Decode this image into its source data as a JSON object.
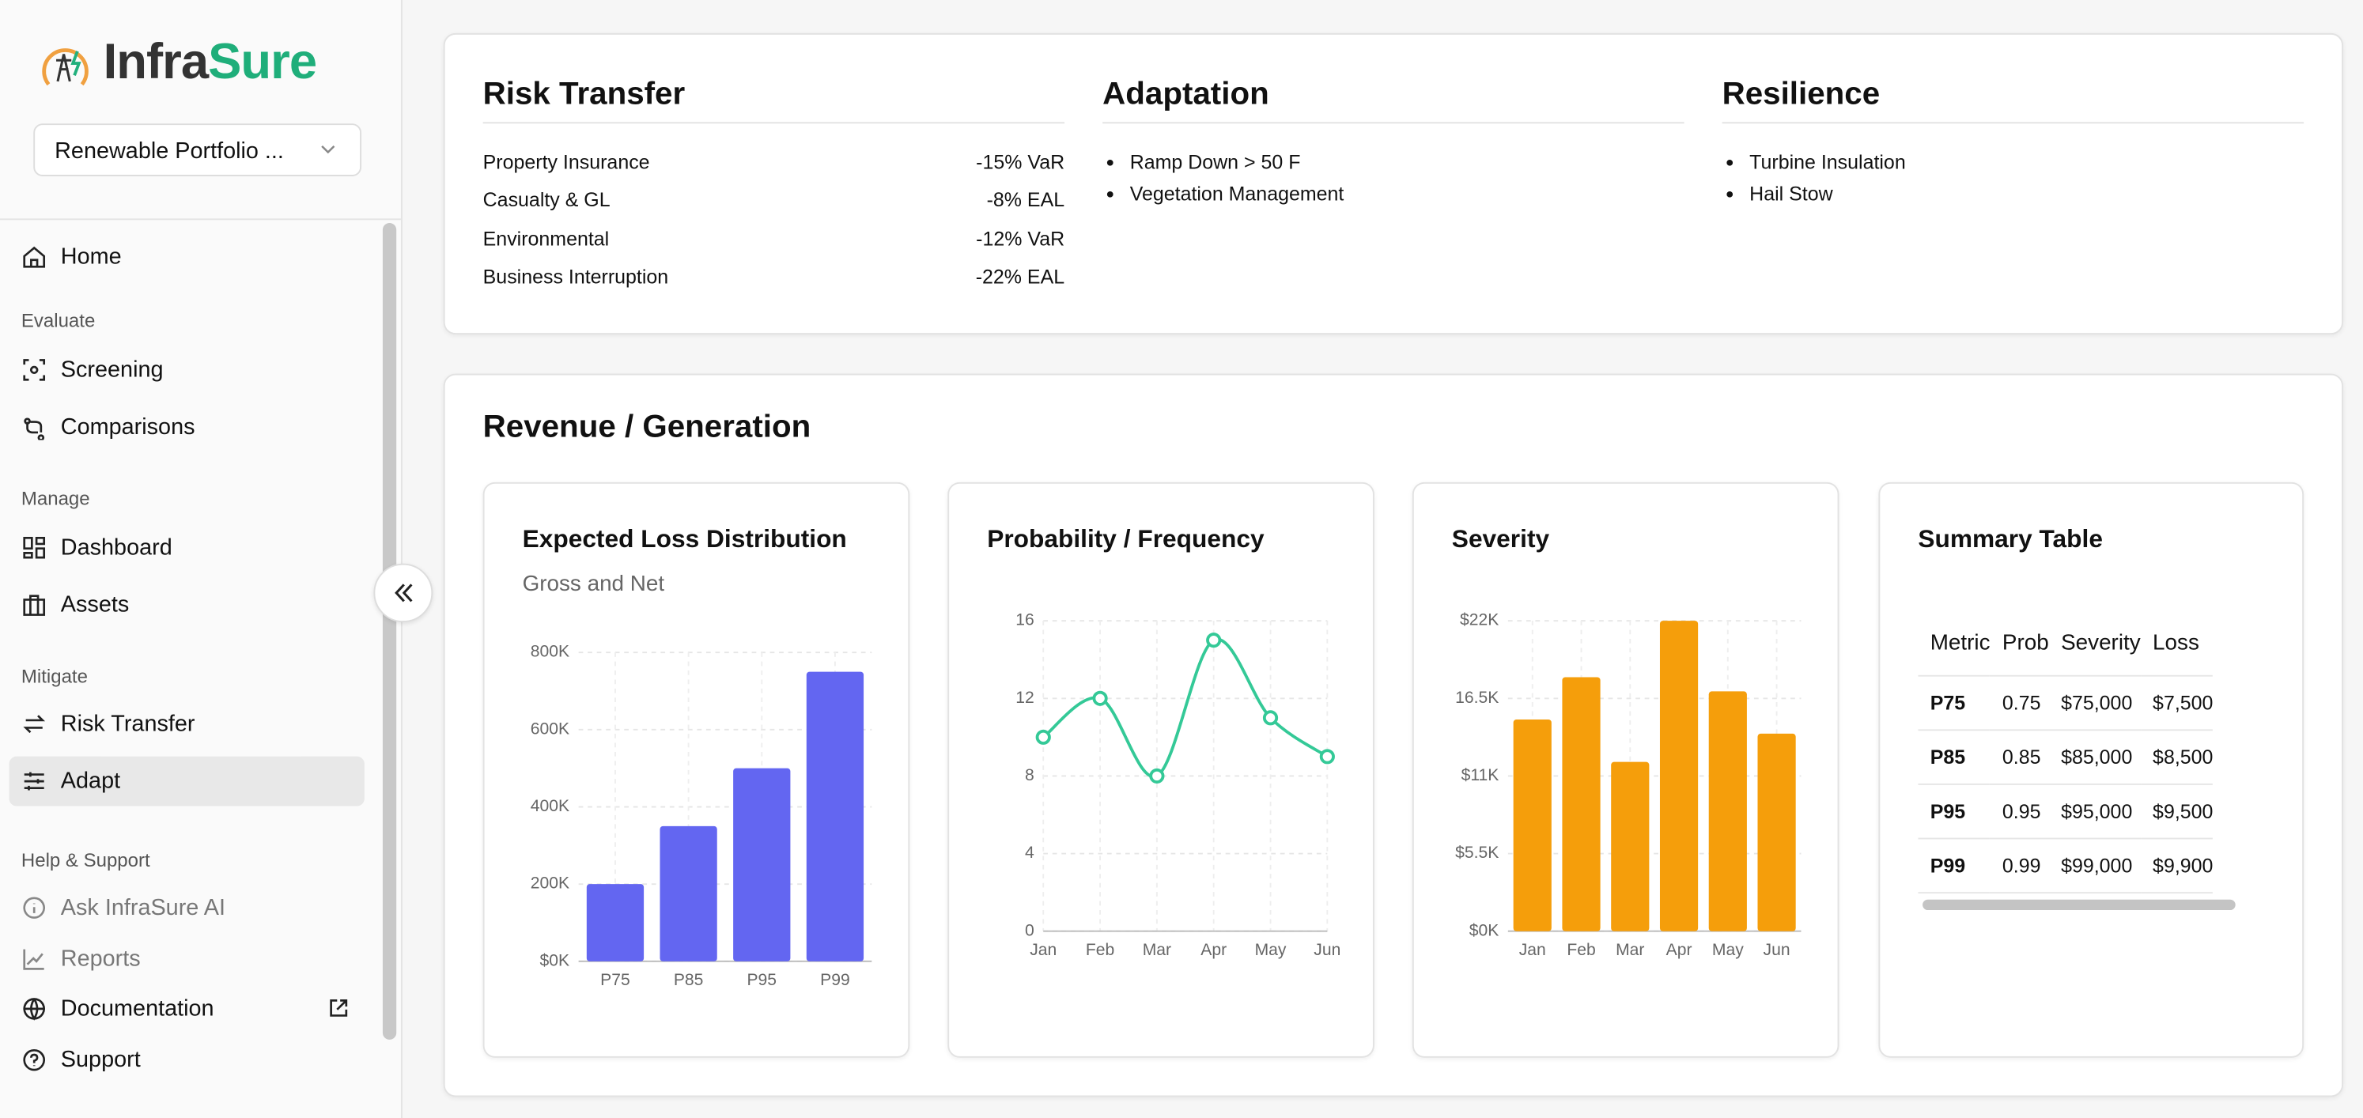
{
  "sidebar": {
    "brand": [
      "Infra",
      "Sure"
    ],
    "portfolio": "Renewable Portfolio ...",
    "nav": [
      {
        "label": "Home"
      },
      {
        "section": "Evaluate"
      },
      {
        "label": "Screening"
      },
      {
        "label": "Comparisons"
      },
      {
        "section": "Manage"
      },
      {
        "label": "Dashboard"
      },
      {
        "label": "Assets"
      },
      {
        "section": "Mitigate"
      },
      {
        "label": "Risk Transfer"
      },
      {
        "label": "Adapt"
      },
      {
        "section": "Help & Support"
      },
      {
        "label": "Ask InfraSure AI"
      },
      {
        "label": "Reports"
      },
      {
        "label": "Documentation"
      },
      {
        "label": "Support"
      }
    ]
  },
  "strategies": {
    "risk_transfer": {
      "title": "Risk Transfer",
      "rows": [
        [
          "Property Insurance",
          "-15% VaR"
        ],
        [
          "Casualty & GL",
          "-8% EAL"
        ],
        [
          "Environmental",
          "-12% VaR"
        ],
        [
          "Business Interruption",
          "-22% EAL"
        ]
      ]
    },
    "adaptation": {
      "title": "Adaptation",
      "items": [
        "Ramp Down > 50 F",
        "Vegetation Management"
      ]
    },
    "resilience": {
      "title": "Resilience",
      "items": [
        "Turbine Insulation",
        "Hail Stow"
      ]
    }
  },
  "section_title": "Revenue / Generation",
  "chart_data": [
    {
      "type": "bar",
      "title": "Expected Loss Distribution",
      "subtitle": "Gross and Net",
      "categories": [
        "P75",
        "P85",
        "P95",
        "P99"
      ],
      "values": [
        200000,
        350000,
        500000,
        750000
      ],
      "color": "#6366f1",
      "ylim": [
        0,
        800000
      ],
      "yticks": [
        {
          "value": 0,
          "label": "$0K"
        },
        {
          "value": 200000,
          "label": "200K"
        },
        {
          "value": 400000,
          "label": "400K"
        },
        {
          "value": 600000,
          "label": "600K"
        },
        {
          "value": 800000,
          "label": "800K"
        }
      ],
      "grid": true
    },
    {
      "type": "line",
      "title": "Probability / Frequency",
      "categories": [
        "Jan",
        "Feb",
        "Mar",
        "Apr",
        "May",
        "Jun"
      ],
      "values": [
        10,
        12,
        8,
        15,
        11,
        9
      ],
      "color": "#34c997",
      "ylim": [
        0,
        16
      ],
      "yticks": [
        0,
        4,
        8,
        12,
        16
      ],
      "grid": true
    },
    {
      "type": "bar",
      "title": "Severity",
      "categories": [
        "Jan",
        "Feb",
        "Mar",
        "Apr",
        "May",
        "Jun"
      ],
      "values": [
        15000,
        18000,
        12000,
        22000,
        17000,
        14000
      ],
      "color": "#f59e0b",
      "ylim": [
        0,
        22000
      ],
      "yticks": [
        {
          "value": 0,
          "label": "$0K"
        },
        {
          "value": 5500,
          "label": "$5.5K"
        },
        {
          "value": 11000,
          "label": "$11K"
        },
        {
          "value": 16500,
          "label": "16.5K"
        },
        {
          "value": 22000,
          "label": "$22K"
        }
      ],
      "grid": true
    }
  ],
  "summary_table": {
    "title": "Summary Table",
    "columns": [
      "Metric",
      "Prob",
      "Severity",
      "Loss"
    ],
    "rows": [
      [
        "P75",
        "0.75",
        "$75,000",
        "$7,500"
      ],
      [
        "P85",
        "0.85",
        "$85,000",
        "$8,500"
      ],
      [
        "P95",
        "0.95",
        "$95,000",
        "$9,500"
      ],
      [
        "P99",
        "0.99",
        "$99,000",
        "$9,900"
      ]
    ]
  }
}
